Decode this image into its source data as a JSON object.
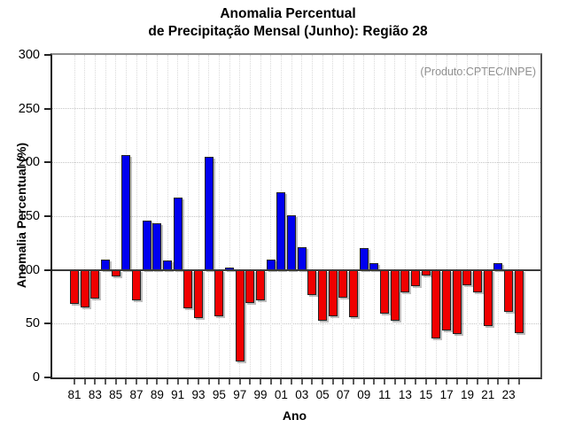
{
  "chart_data": {
    "type": "bar",
    "title_line1": "Anomalia Percentual",
    "title_line2": "de Precipitação Mensal (Junho): Região 28",
    "annotation": "(Produto:CPTEC/INPE)",
    "xlabel": "Ano",
    "ylabel": "Anomalia Percentual (%)",
    "ylim": [
      0,
      300
    ],
    "yticks": [
      0,
      50,
      100,
      150,
      200,
      250,
      300
    ],
    "ygridlines": [
      50,
      150,
      200,
      250
    ],
    "baseline": 100,
    "grid": "dotted",
    "legend_position": "none",
    "colors": {
      "above": "#0000F0",
      "below": "#F00000",
      "bar_border": "#222222",
      "annotation": "#909090",
      "baseline": "#3a3a3a"
    },
    "years": [
      1981,
      1982,
      1983,
      1984,
      1985,
      1986,
      1987,
      1988,
      1989,
      1990,
      1991,
      1992,
      1993,
      1994,
      1995,
      1996,
      1997,
      1998,
      1999,
      2000,
      2001,
      2002,
      2003,
      2004,
      2005,
      2006,
      2007,
      2008,
      2009,
      2010,
      2011,
      2012,
      2013,
      2014,
      2015,
      2016,
      2017,
      2018,
      2019,
      2020,
      2021,
      2022,
      2023,
      2024
    ],
    "values": [
      68,
      65,
      73,
      110,
      94,
      207,
      72,
      146,
      143,
      109,
      167,
      64,
      55,
      205,
      57,
      102,
      15,
      69,
      72,
      110,
      172,
      151,
      121,
      77,
      53,
      57,
      74,
      56,
      120,
      106,
      59,
      53,
      79,
      85,
      95,
      36,
      44,
      40,
      86,
      79,
      48,
      106,
      61,
      41
    ],
    "xtick_labels": [
      "81",
      "83",
      "85",
      "87",
      "89",
      "91",
      "93",
      "95",
      "97",
      "99",
      "01",
      "03",
      "05",
      "07",
      "09",
      "11",
      "13",
      "15",
      "17",
      "19",
      "21",
      "23"
    ]
  }
}
